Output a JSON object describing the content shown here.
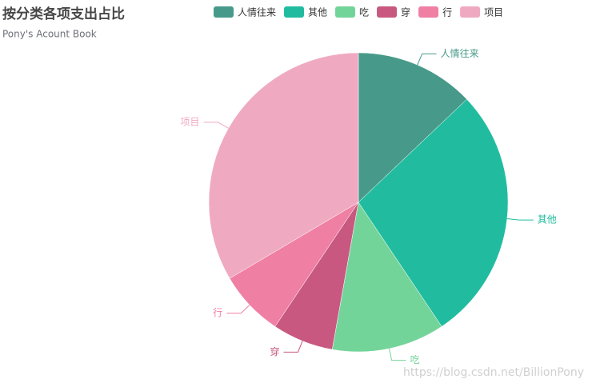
{
  "chart_data": {
    "type": "pie",
    "title": "按分类各项支出占比",
    "subtitle": "Pony's Acount Book",
    "categories": [
      "人情往来",
      "其他",
      "吃",
      "穿",
      "行",
      "项目"
    ],
    "values": [
      12.9,
      27.7,
      12.2,
      6.6,
      7.1,
      33.5
    ],
    "colors": [
      "#479a89",
      "#21bc9f",
      "#73d49a",
      "#c85880",
      "#f07fa4",
      "#efaac2"
    ],
    "legend": "top",
    "watermark": "https://blog.csdn.net/BillionPony"
  }
}
